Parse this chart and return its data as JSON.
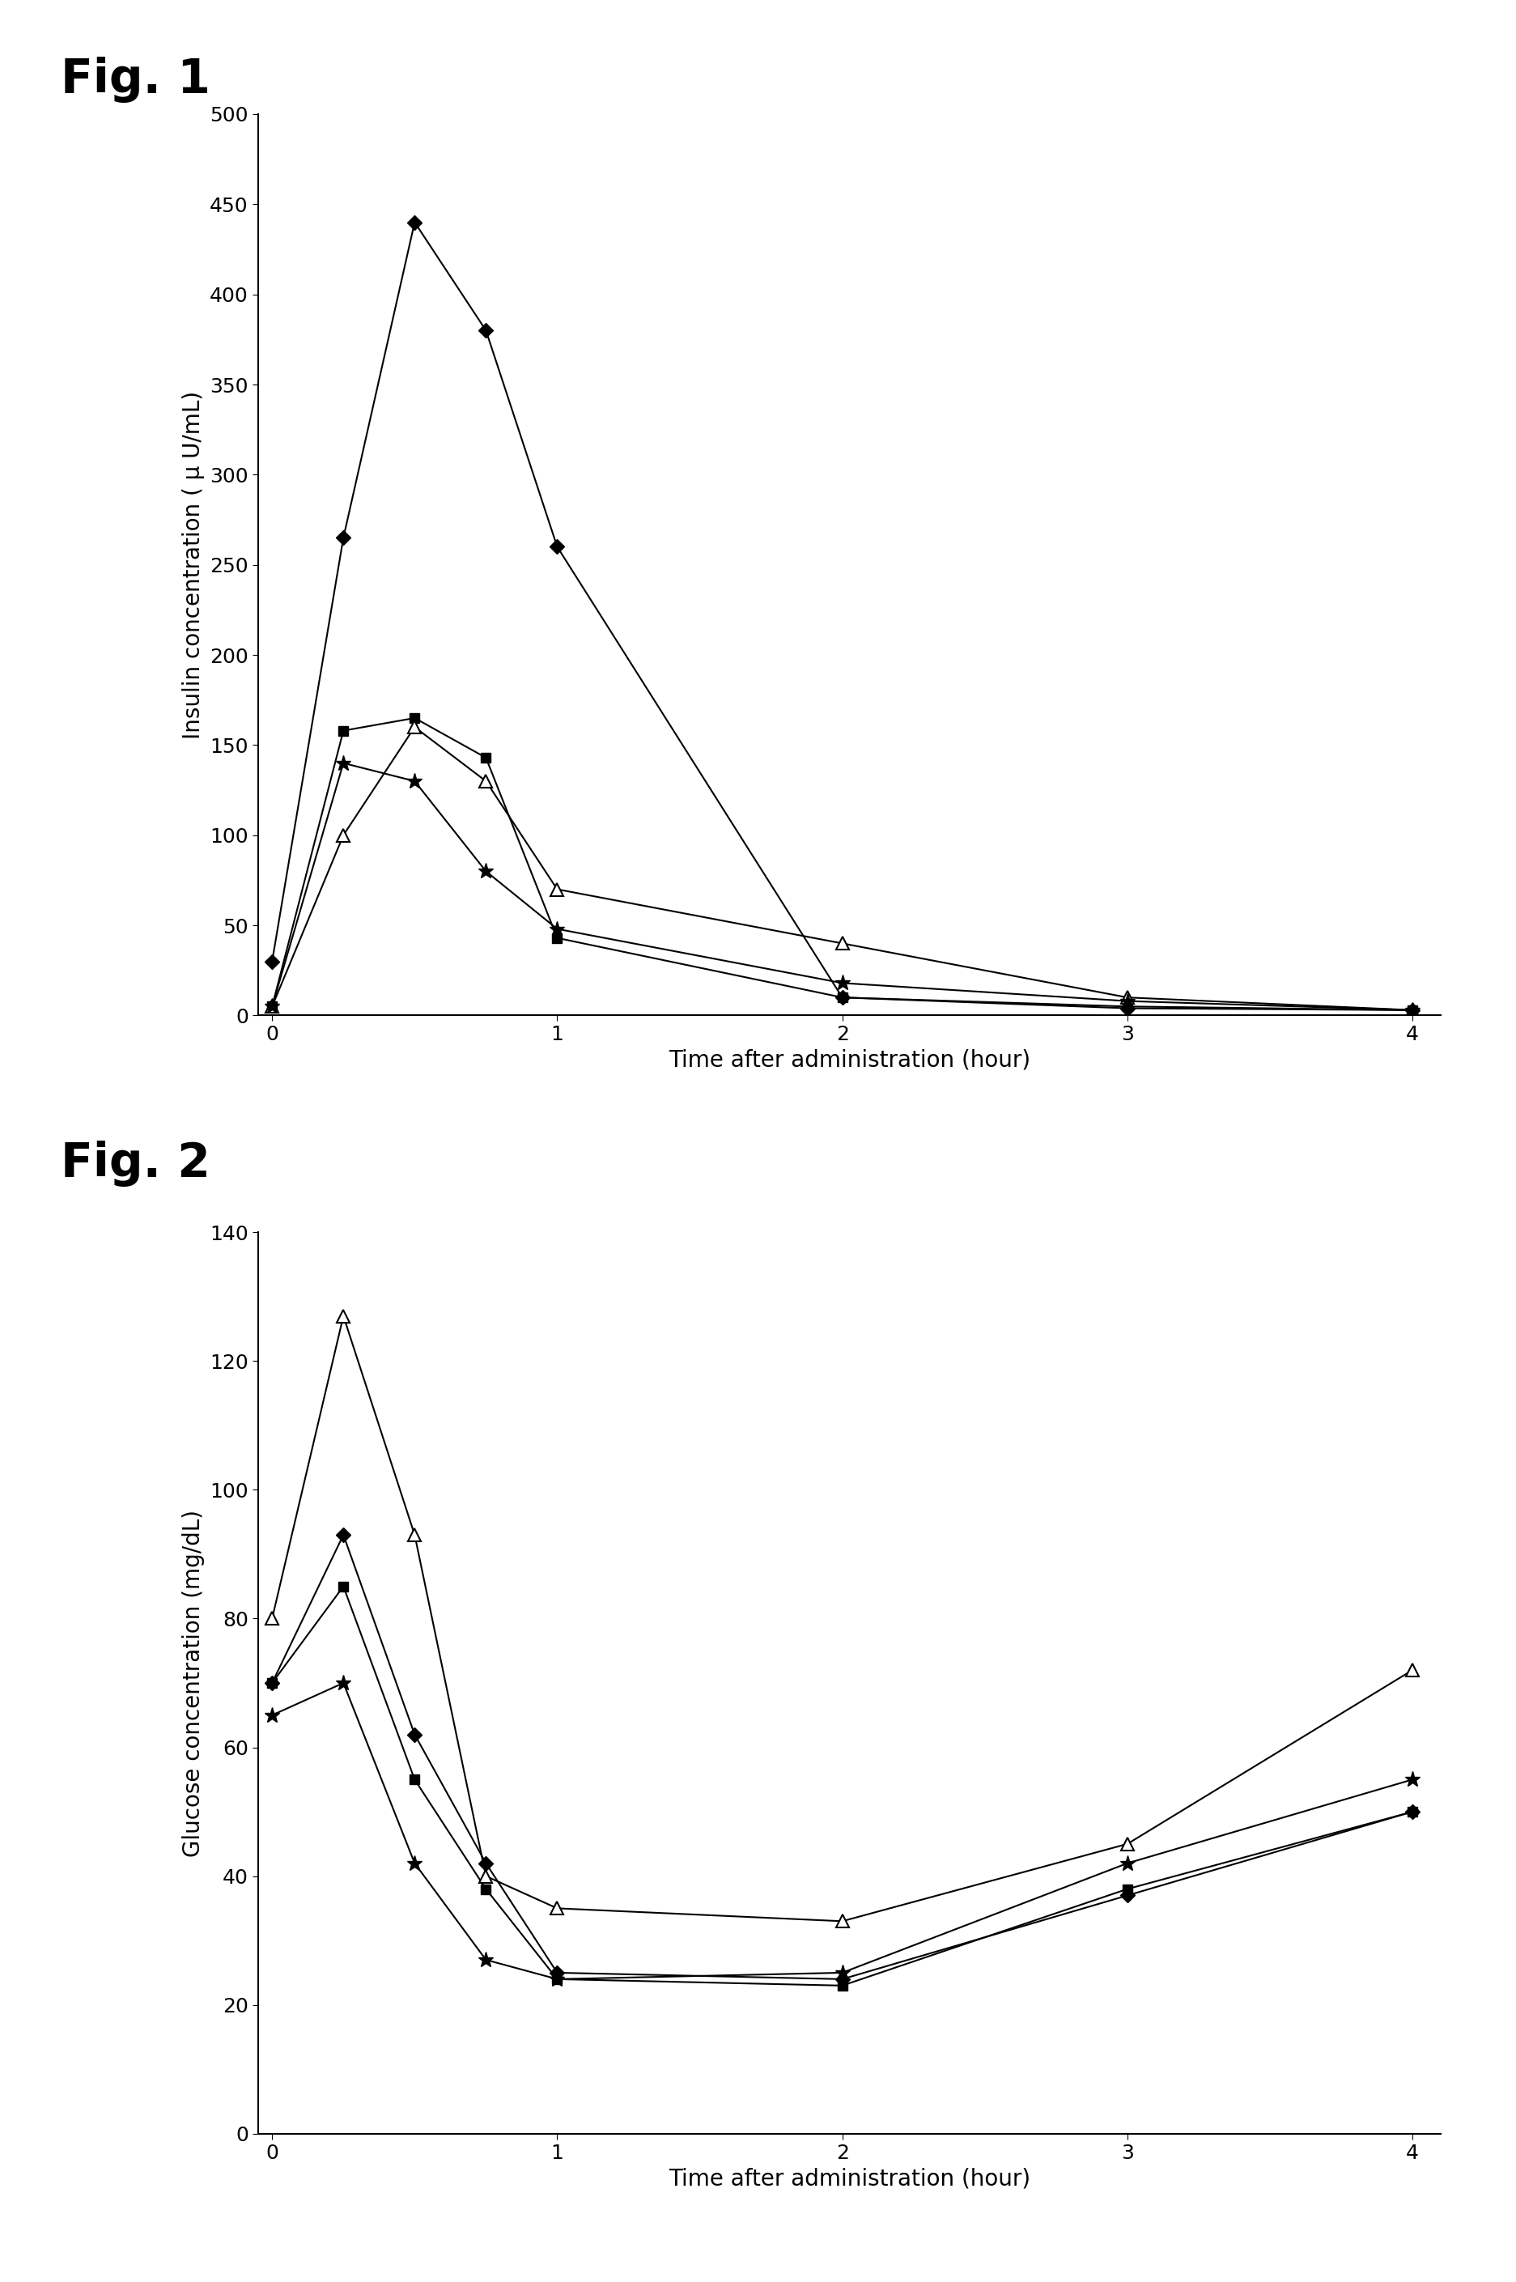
{
  "fig1_title": "Fig. 1",
  "fig2_title": "Fig. 2",
  "fig1": {
    "ylabel": "Insulin concentration ( μ U/mL)",
    "xlabel": "Time after administration (hour)",
    "ylim": [
      0,
      500
    ],
    "yticks": [
      0,
      50,
      100,
      150,
      200,
      250,
      300,
      350,
      400,
      450,
      500
    ],
    "xlim": [
      -0.05,
      4.1
    ],
    "xticks": [
      0,
      1,
      2,
      3,
      4
    ],
    "series": [
      {
        "x": [
          0,
          0.25,
          0.5,
          0.75,
          1.0,
          2.0,
          3.0,
          4.0
        ],
        "y": [
          30,
          265,
          440,
          380,
          260,
          10,
          4,
          3
        ],
        "marker": "D",
        "markersize": 9,
        "fillstyle": "full"
      },
      {
        "x": [
          0,
          0.25,
          0.5,
          0.75,
          1.0,
          2.0,
          3.0,
          4.0
        ],
        "y": [
          5,
          158,
          165,
          143,
          43,
          10,
          5,
          3
        ],
        "marker": "s",
        "markersize": 9,
        "fillstyle": "full"
      },
      {
        "x": [
          0,
          0.25,
          0.5,
          0.75,
          1.0,
          2.0,
          3.0,
          4.0
        ],
        "y": [
          5,
          100,
          160,
          130,
          70,
          40,
          10,
          3
        ],
        "marker": "^",
        "markersize": 11,
        "fillstyle": "none"
      },
      {
        "x": [
          0,
          0.25,
          0.5,
          0.75,
          1.0,
          2.0,
          3.0,
          4.0
        ],
        "y": [
          5,
          140,
          130,
          80,
          48,
          18,
          8,
          3
        ],
        "marker": "*",
        "markersize": 14,
        "fillstyle": "full"
      }
    ]
  },
  "fig2": {
    "ylabel": "Glucose concentration (mg/dL)",
    "xlabel": "Time after administration (hour)",
    "ylim": [
      0,
      140
    ],
    "yticks": [
      0,
      20,
      40,
      60,
      80,
      100,
      120,
      140
    ],
    "xlim": [
      -0.05,
      4.1
    ],
    "xticks": [
      0,
      1,
      2,
      3,
      4
    ],
    "series": [
      {
        "x": [
          0,
          0.25,
          0.5,
          0.75,
          1.0,
          2.0,
          3.0,
          4.0
        ],
        "y": [
          70,
          93,
          62,
          42,
          25,
          24,
          37,
          50
        ],
        "marker": "D",
        "markersize": 9,
        "fillstyle": "full"
      },
      {
        "x": [
          0,
          0.25,
          0.5,
          0.75,
          1.0,
          2.0,
          3.0,
          4.0
        ],
        "y": [
          70,
          85,
          55,
          38,
          24,
          23,
          38,
          50
        ],
        "marker": "s",
        "markersize": 9,
        "fillstyle": "full"
      },
      {
        "x": [
          0,
          0.25,
          0.5,
          0.75,
          1.0,
          2.0,
          3.0,
          4.0
        ],
        "y": [
          80,
          127,
          93,
          40,
          35,
          33,
          45,
          72
        ],
        "marker": "^",
        "markersize": 11,
        "fillstyle": "none"
      },
      {
        "x": [
          0,
          0.25,
          0.5,
          0.75,
          1.0,
          2.0,
          3.0,
          4.0
        ],
        "y": [
          65,
          70,
          42,
          27,
          24,
          25,
          42,
          55
        ],
        "marker": "*",
        "markersize": 14,
        "fillstyle": "full"
      }
    ]
  },
  "background_color": "#ffffff",
  "title_fontsize": 42,
  "label_fontsize": 20,
  "tick_fontsize": 18,
  "linewidth": 1.5
}
